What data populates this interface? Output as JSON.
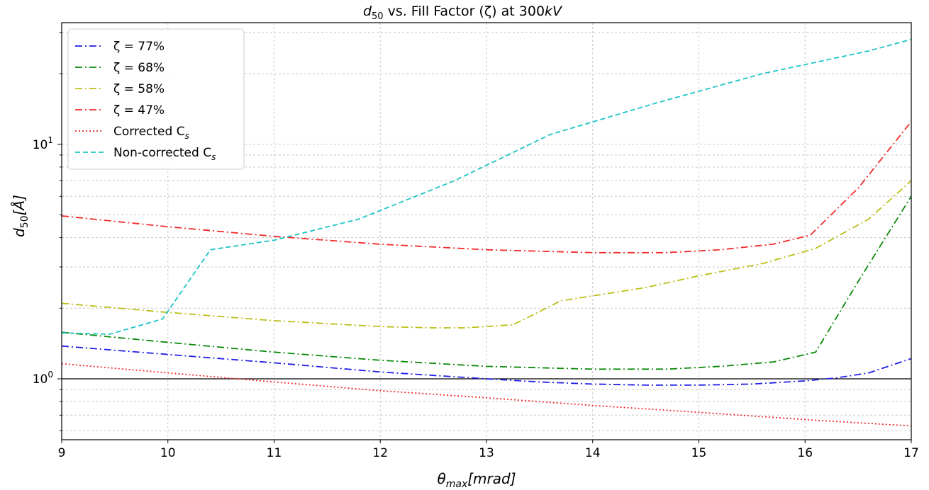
{
  "chart_data": {
    "type": "line",
    "title": {
      "pre": "d",
      "sub": "50",
      "mid": " vs. Fill Factor (ζ) at 300",
      "italic": "kV"
    },
    "xlabel": {
      "main": "θ",
      "sub": "max",
      "rest": "[mrad]"
    },
    "ylabel": {
      "main": "d",
      "sub": "50",
      "rest": "[Å]"
    },
    "xlim": [
      9,
      17
    ],
    "ylim": [
      0.55,
      33
    ],
    "yscale": "log",
    "grid": true,
    "legend_position": "upper-left",
    "x_ticks": [
      "9",
      "10",
      "11",
      "12",
      "13",
      "14",
      "15",
      "16",
      "17"
    ],
    "y_ticks": [
      {
        "value": 1,
        "base": "10",
        "exp": "0"
      },
      {
        "value": 10,
        "base": "10",
        "exp": "1"
      }
    ],
    "reference_line": {
      "y": 1.0,
      "color": "#000000"
    },
    "series": [
      {
        "name": "ζ = 77%",
        "color": "#1f1fe6",
        "style": "dashdot",
        "x": [
          9,
          10,
          11,
          12,
          13,
          13.5,
          14,
          14.5,
          15,
          15.5,
          16,
          16.3,
          16.6,
          17
        ],
        "y": [
          1.38,
          1.27,
          1.17,
          1.07,
          1.0,
          0.97,
          0.95,
          0.94,
          0.94,
          0.95,
          0.98,
          1.01,
          1.06,
          1.22
        ]
      },
      {
        "name": "ζ = 68%",
        "color": "#0a8a0a",
        "style": "dashdot",
        "x": [
          9,
          10,
          11,
          12,
          13,
          14,
          14.7,
          15.2,
          15.7,
          16.1,
          16.5,
          17
        ],
        "y": [
          1.58,
          1.43,
          1.3,
          1.2,
          1.13,
          1.1,
          1.1,
          1.13,
          1.18,
          1.3,
          2.6,
          6.0
        ]
      },
      {
        "name": "ζ = 58%",
        "color": "#bdbd17",
        "style": "dashdot",
        "x": [
          9,
          10,
          11,
          12,
          12.5,
          12.8,
          13.25,
          13.7,
          14.5,
          15,
          15.6,
          16.1,
          16.6,
          17
        ],
        "y": [
          2.1,
          1.92,
          1.77,
          1.67,
          1.65,
          1.65,
          1.7,
          2.15,
          2.45,
          2.75,
          3.1,
          3.6,
          4.8,
          7.0
        ]
      },
      {
        "name": "ζ = 47%",
        "color": "#f22a2a",
        "style": "dashdot",
        "x": [
          9,
          10,
          11,
          12,
          13,
          14,
          14.7,
          15.2,
          15.7,
          16.05,
          16.5,
          17
        ],
        "y": [
          4.95,
          4.45,
          4.05,
          3.75,
          3.55,
          3.45,
          3.45,
          3.55,
          3.75,
          4.1,
          6.5,
          12.5
        ]
      },
      {
        "name": "Corrected C",
        "name_sub": "s",
        "color": "#f22a2a",
        "style": "dotted",
        "x": [
          9,
          10,
          11,
          12,
          13,
          14,
          15,
          16,
          17
        ],
        "y": [
          1.16,
          1.06,
          0.97,
          0.89,
          0.83,
          0.77,
          0.72,
          0.67,
          0.63
        ]
      },
      {
        "name": "Non-corrected C",
        "name_sub": "s",
        "color": "#1ec4c4",
        "style": "dashed",
        "x": [
          9,
          9.45,
          9.95,
          10.4,
          11,
          11.8,
          12.7,
          13.6,
          14.6,
          15.6,
          16.6,
          17
        ],
        "y": [
          1.57,
          1.55,
          1.8,
          3.55,
          3.9,
          4.8,
          7.0,
          11.0,
          15.0,
          20.0,
          25.0,
          28.0
        ]
      }
    ]
  }
}
